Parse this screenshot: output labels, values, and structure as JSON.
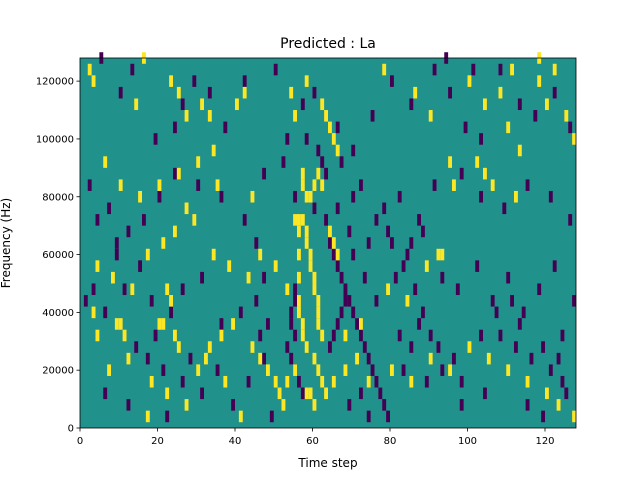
{
  "chart_data": {
    "type": "heatmap",
    "title": "Predicted : La",
    "xlabel": "Time step",
    "ylabel": "Frequency (Hz)",
    "xlim": [
      0,
      128
    ],
    "ylim": [
      0,
      128000
    ],
    "x_ticks": [
      0,
      20,
      40,
      60,
      80,
      100,
      120
    ],
    "y_ticks": [
      0,
      20000,
      40000,
      60000,
      80000,
      100000,
      120000
    ],
    "grid": false,
    "colormap": "viridis",
    "colors": {
      "background": "#21918c",
      "high": "#fde725",
      "low": "#440154"
    },
    "cell_height_hz": 4000,
    "high_cells": [
      [
        2,
        122000
      ],
      [
        3,
        118000
      ],
      [
        14,
        110000
      ],
      [
        16,
        126000
      ],
      [
        23,
        118000
      ],
      [
        25,
        114000
      ],
      [
        27,
        106000
      ],
      [
        31,
        110000
      ],
      [
        33,
        106000
      ],
      [
        34,
        94000
      ],
      [
        40,
        110000
      ],
      [
        42,
        114000
      ],
      [
        54,
        114000
      ],
      [
        55,
        106000
      ],
      [
        58,
        118000
      ],
      [
        62,
        110000
      ],
      [
        63,
        106000
      ],
      [
        64,
        102000
      ],
      [
        65,
        98000
      ],
      [
        66,
        94000
      ],
      [
        78,
        122000
      ],
      [
        86,
        114000
      ],
      [
        90,
        106000
      ],
      [
        95,
        90000
      ],
      [
        96,
        82000
      ],
      [
        100,
        118000
      ],
      [
        104,
        110000
      ],
      [
        108,
        114000
      ],
      [
        110,
        102000
      ],
      [
        113,
        94000
      ],
      [
        118,
        118000
      ],
      [
        120,
        110000
      ],
      [
        125,
        106000
      ],
      [
        127,
        98000
      ],
      [
        102,
        90000
      ],
      [
        104,
        86000
      ],
      [
        106,
        82000
      ],
      [
        112,
        78000
      ],
      [
        111,
        122000
      ],
      [
        122,
        122000
      ],
      [
        118,
        126000
      ],
      [
        6,
        90000
      ],
      [
        10,
        82000
      ],
      [
        15,
        78000
      ],
      [
        20,
        82000
      ],
      [
        25,
        86000
      ],
      [
        30,
        90000
      ],
      [
        27,
        74000
      ],
      [
        35,
        82000
      ],
      [
        44,
        78000
      ],
      [
        57,
        86000
      ],
      [
        57,
        82000
      ],
      [
        58,
        78000
      ],
      [
        59,
        78000
      ],
      [
        60,
        82000
      ],
      [
        61,
        86000
      ],
      [
        62,
        82000
      ],
      [
        4,
        54000
      ],
      [
        8,
        50000
      ],
      [
        13,
        46000
      ],
      [
        17,
        58000
      ],
      [
        21,
        62000
      ],
      [
        24,
        66000
      ],
      [
        29,
        70000
      ],
      [
        34,
        58000
      ],
      [
        38,
        54000
      ],
      [
        43,
        50000
      ],
      [
        46,
        58000
      ],
      [
        50,
        54000
      ],
      [
        53,
        46000
      ],
      [
        55,
        70000
      ],
      [
        56,
        70000
      ],
      [
        57,
        70000
      ],
      [
        58,
        66000
      ],
      [
        58,
        62000
      ],
      [
        59,
        58000
      ],
      [
        59,
        54000
      ],
      [
        60,
        50000
      ],
      [
        60,
        46000
      ],
      [
        61,
        42000
      ],
      [
        61,
        38000
      ],
      [
        61,
        34000
      ],
      [
        62,
        30000
      ],
      [
        56,
        66000
      ],
      [
        56,
        58000
      ],
      [
        56,
        50000
      ],
      [
        56,
        42000
      ],
      [
        56,
        38000
      ],
      [
        57,
        34000
      ],
      [
        57,
        30000
      ],
      [
        58,
        26000
      ],
      [
        60,
        22000
      ],
      [
        61,
        18000
      ],
      [
        62,
        14000
      ],
      [
        63,
        10000
      ],
      [
        92,
        58000
      ],
      [
        93,
        58000
      ],
      [
        89,
        54000
      ],
      [
        79,
        46000
      ],
      [
        84,
        42000
      ],
      [
        72,
        34000
      ],
      [
        68,
        30000
      ],
      [
        64,
        66000
      ],
      [
        65,
        62000
      ],
      [
        66,
        58000
      ],
      [
        9,
        34000
      ],
      [
        10,
        34000
      ],
      [
        11,
        30000
      ],
      [
        20,
        34000
      ],
      [
        21,
        34000
      ],
      [
        22,
        46000
      ],
      [
        23,
        42000
      ],
      [
        24,
        30000
      ],
      [
        25,
        26000
      ],
      [
        32,
        22000
      ],
      [
        33,
        26000
      ],
      [
        36,
        30000
      ],
      [
        39,
        34000
      ],
      [
        44,
        26000
      ],
      [
        46,
        22000
      ],
      [
        48,
        18000
      ],
      [
        50,
        14000
      ],
      [
        51,
        10000
      ],
      [
        52,
        6000
      ],
      [
        53,
        14000
      ],
      [
        55,
        18000
      ],
      [
        58,
        10000
      ],
      [
        59,
        10000
      ],
      [
        60,
        6000
      ],
      [
        65,
        14000
      ],
      [
        68,
        18000
      ],
      [
        71,
        22000
      ],
      [
        74,
        14000
      ],
      [
        80,
        18000
      ],
      [
        85,
        14000
      ],
      [
        90,
        22000
      ],
      [
        95,
        18000
      ],
      [
        100,
        26000
      ],
      [
        105,
        22000
      ],
      [
        110,
        18000
      ],
      [
        115,
        14000
      ],
      [
        120,
        10000
      ],
      [
        123,
        6000
      ],
      [
        127,
        2000
      ],
      [
        18,
        14000
      ],
      [
        22,
        10000
      ],
      [
        27,
        6000
      ],
      [
        30,
        18000
      ],
      [
        37,
        14000
      ],
      [
        41,
        2000
      ],
      [
        17,
        2000
      ],
      [
        12,
        22000
      ],
      [
        7,
        18000
      ],
      [
        4,
        30000
      ],
      [
        3,
        38000
      ]
    ],
    "low_cells": [
      [
        5,
        126000
      ],
      [
        10,
        114000
      ],
      [
        13,
        122000
      ],
      [
        19,
        98000
      ],
      [
        24,
        102000
      ],
      [
        26,
        110000
      ],
      [
        29,
        118000
      ],
      [
        33,
        114000
      ],
      [
        37,
        102000
      ],
      [
        42,
        118000
      ],
      [
        50,
        122000
      ],
      [
        53,
        98000
      ],
      [
        57,
        110000
      ],
      [
        60,
        114000
      ],
      [
        66,
        102000
      ],
      [
        70,
        94000
      ],
      [
        75,
        106000
      ],
      [
        80,
        118000
      ],
      [
        85,
        110000
      ],
      [
        91,
        122000
      ],
      [
        95,
        114000
      ],
      [
        99,
        102000
      ],
      [
        103,
        98000
      ],
      [
        108,
        122000
      ],
      [
        113,
        110000
      ],
      [
        117,
        106000
      ],
      [
        122,
        114000
      ],
      [
        126,
        102000
      ],
      [
        94,
        126000
      ],
      [
        101,
        122000
      ],
      [
        72,
        82000
      ],
      [
        78,
        74000
      ],
      [
        82,
        78000
      ],
      [
        87,
        70000
      ],
      [
        91,
        82000
      ],
      [
        98,
        86000
      ],
      [
        103,
        78000
      ],
      [
        109,
        74000
      ],
      [
        115,
        82000
      ],
      [
        121,
        78000
      ],
      [
        126,
        70000
      ],
      [
        2,
        82000
      ],
      [
        7,
        74000
      ],
      [
        12,
        66000
      ],
      [
        16,
        70000
      ],
      [
        20,
        78000
      ],
      [
        24,
        86000
      ],
      [
        30,
        82000
      ],
      [
        36,
        78000
      ],
      [
        42,
        70000
      ],
      [
        47,
        86000
      ],
      [
        52,
        90000
      ],
      [
        55,
        78000
      ],
      [
        63,
        86000
      ],
      [
        67,
        90000
      ],
      [
        70,
        78000
      ],
      [
        76,
        70000
      ],
      [
        80,
        62000
      ],
      [
        84,
        58000
      ],
      [
        88,
        66000
      ],
      [
        93,
        50000
      ],
      [
        97,
        46000
      ],
      [
        102,
        54000
      ],
      [
        106,
        42000
      ],
      [
        110,
        50000
      ],
      [
        114,
        38000
      ],
      [
        118,
        46000
      ],
      [
        122,
        54000
      ],
      [
        127,
        42000
      ],
      [
        60,
        74000
      ],
      [
        63,
        70000
      ],
      [
        64,
        62000
      ],
      [
        65,
        58000
      ],
      [
        66,
        54000
      ],
      [
        67,
        50000
      ],
      [
        68,
        46000
      ],
      [
        69,
        42000
      ],
      [
        70,
        38000
      ],
      [
        71,
        34000
      ],
      [
        72,
        30000
      ],
      [
        73,
        26000
      ],
      [
        74,
        22000
      ],
      [
        75,
        18000
      ],
      [
        76,
        14000
      ],
      [
        77,
        10000
      ],
      [
        78,
        6000
      ],
      [
        79,
        2000
      ],
      [
        55,
        46000
      ],
      [
        55,
        42000
      ],
      [
        54,
        38000
      ],
      [
        54,
        34000
      ],
      [
        55,
        30000
      ],
      [
        53,
        26000
      ],
      [
        54,
        22000
      ],
      [
        55,
        18000
      ],
      [
        56,
        14000
      ],
      [
        57,
        10000
      ],
      [
        64,
        26000
      ],
      [
        65,
        30000
      ],
      [
        66,
        34000
      ],
      [
        67,
        38000
      ],
      [
        68,
        42000
      ],
      [
        81,
        50000
      ],
      [
        83,
        54000
      ],
      [
        86,
        46000
      ],
      [
        88,
        38000
      ],
      [
        90,
        30000
      ],
      [
        92,
        26000
      ],
      [
        96,
        22000
      ],
      [
        98,
        14000
      ],
      [
        104,
        10000
      ],
      [
        108,
        30000
      ],
      [
        112,
        26000
      ],
      [
        116,
        22000
      ],
      [
        119,
        26000
      ],
      [
        121,
        18000
      ],
      [
        124,
        14000
      ],
      [
        124,
        30000
      ],
      [
        15,
        54000
      ],
      [
        18,
        42000
      ],
      [
        23,
        38000
      ],
      [
        26,
        46000
      ],
      [
        31,
        50000
      ],
      [
        36,
        34000
      ],
      [
        41,
        38000
      ],
      [
        46,
        30000
      ],
      [
        48,
        34000
      ],
      [
        45,
        42000
      ],
      [
        45,
        62000
      ],
      [
        47,
        50000
      ],
      [
        3,
        46000
      ],
      [
        6,
        38000
      ],
      [
        9,
        58000
      ],
      [
        11,
        46000
      ],
      [
        14,
        26000
      ],
      [
        17,
        22000
      ],
      [
        19,
        30000
      ],
      [
        21,
        18000
      ],
      [
        26,
        14000
      ],
      [
        28,
        22000
      ],
      [
        31,
        10000
      ],
      [
        35,
        18000
      ],
      [
        39,
        6000
      ],
      [
        43,
        14000
      ],
      [
        47,
        22000
      ],
      [
        49,
        2000
      ],
      [
        69,
        6000
      ],
      [
        72,
        10000
      ],
      [
        74,
        2000
      ],
      [
        83,
        18000
      ],
      [
        85,
        26000
      ],
      [
        89,
        14000
      ],
      [
        93,
        18000
      ],
      [
        98,
        6000
      ],
      [
        103,
        30000
      ],
      [
        107,
        38000
      ],
      [
        111,
        42000
      ],
      [
        115,
        6000
      ],
      [
        119,
        2000
      ],
      [
        123,
        22000
      ],
      [
        125,
        10000
      ],
      [
        113,
        34000
      ],
      [
        87,
        34000
      ],
      [
        82,
        30000
      ],
      [
        76,
        42000
      ],
      [
        73,
        50000
      ],
      [
        70,
        58000
      ],
      [
        69,
        66000
      ],
      [
        66,
        74000
      ],
      [
        62,
        90000
      ],
      [
        61,
        94000
      ],
      [
        58,
        98000
      ],
      [
        74,
        62000
      ],
      [
        79,
        66000
      ],
      [
        85,
        62000
      ],
      [
        6,
        10000
      ],
      [
        12,
        6000
      ],
      [
        22,
        2000
      ],
      [
        4,
        70000
      ],
      [
        9,
        62000
      ],
      [
        1,
        42000
      ]
    ]
  }
}
